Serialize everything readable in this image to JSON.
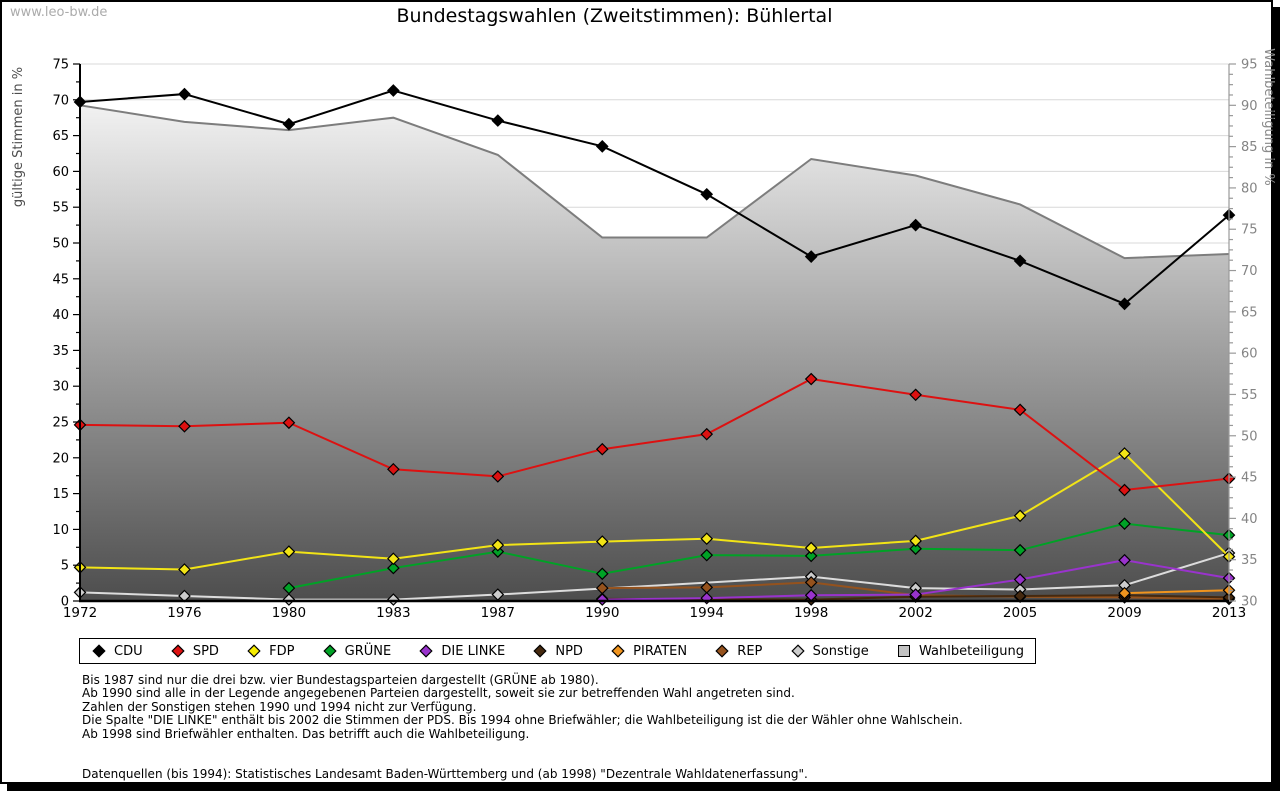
{
  "watermark": "www.leo-bw.de",
  "title": "Bundestagswahlen (Zweitstimmen): Bühlertal",
  "chart_data": {
    "type": "line",
    "categories": [
      "1972",
      "1976",
      "1980",
      "1983",
      "1987",
      "1990",
      "1994",
      "1998",
      "2002",
      "2005",
      "2009",
      "2013"
    ],
    "left_axis": {
      "label": "gültige Stimmen in %",
      "min": 0,
      "max": 75,
      "major_step": 5,
      "minor_step": 2.5
    },
    "right_axis": {
      "label": "Wahlbeteiligung in %",
      "min": 30,
      "max": 95,
      "major_step": 5,
      "minor_step": 1.25
    },
    "grid": "horizontal",
    "legend_position": "bottom",
    "turnout_series": {
      "name": "Wahlbeteiligung",
      "axis": "right",
      "style": "area",
      "line_color": "#7d7d7d",
      "fill_gradient_top": "#ffffff",
      "fill_gradient_bottom": "#4d4d4d",
      "values": [
        90,
        88,
        87,
        88.5,
        84,
        74,
        74,
        83.5,
        81.5,
        78,
        71.5,
        72
      ]
    },
    "series": [
      {
        "name": "CDU",
        "color": "#000000",
        "values": [
          69.7,
          70.8,
          66.6,
          71.3,
          67.1,
          63.5,
          56.8,
          48.1,
          52.5,
          47.5,
          41.5,
          53.9
        ]
      },
      {
        "name": "SPD",
        "color": "#dd1111",
        "values": [
          24.6,
          24.4,
          24.9,
          18.4,
          17.4,
          21.2,
          23.3,
          31.0,
          28.8,
          26.7,
          15.5,
          17.1
        ]
      },
      {
        "name": "FDP",
        "color": "#f2e416",
        "values": [
          4.7,
          4.4,
          6.9,
          5.9,
          7.8,
          8.3,
          8.7,
          7.4,
          8.4,
          11.9,
          20.6,
          6.2
        ]
      },
      {
        "name": "GRÜNE",
        "color": "#00a226",
        "values": [
          null,
          null,
          1.8,
          4.6,
          6.9,
          3.8,
          6.4,
          6.3,
          7.3,
          7.1,
          10.8,
          9.2
        ]
      },
      {
        "name": "DIE LINKE",
        "color": "#9933cc",
        "values": [
          null,
          null,
          null,
          null,
          null,
          0.2,
          0.4,
          0.8,
          0.9,
          3.0,
          5.7,
          3.2
        ]
      },
      {
        "name": "NPD",
        "color": "#45290f",
        "values": [
          null,
          null,
          null,
          null,
          null,
          0.3,
          null,
          0.2,
          0.6,
          0.7,
          0.8,
          0.5
        ]
      },
      {
        "name": "PIRATEN",
        "color": "#f0941e",
        "values": [
          null,
          null,
          null,
          null,
          null,
          null,
          null,
          null,
          null,
          null,
          1.1,
          1.5
        ]
      },
      {
        "name": "REP",
        "color": "#95521d",
        "values": [
          null,
          null,
          null,
          null,
          null,
          1.8,
          1.9,
          2.6,
          0.8,
          0.6,
          0.5,
          0.3
        ]
      },
      {
        "name": "Sonstige",
        "color": "#dcdcdc",
        "marker_fill": "#cccccc",
        "connect_gaps": true,
        "values": [
          1.2,
          0.7,
          0.2,
          0.2,
          0.9,
          null,
          null,
          3.4,
          1.8,
          1.6,
          2.2,
          6.7
        ]
      }
    ]
  },
  "legend": {
    "items": [
      {
        "label": "CDU",
        "swatch": "diamond",
        "color": "#000000"
      },
      {
        "label": "SPD",
        "swatch": "diamond",
        "color": "#dd1111"
      },
      {
        "label": "FDP",
        "swatch": "diamond",
        "color": "#f6ec00"
      },
      {
        "label": "GRÜNE",
        "swatch": "diamond",
        "color": "#00a226"
      },
      {
        "label": "DIE LINKE",
        "swatch": "diamond",
        "color": "#9933cc"
      },
      {
        "label": "NPD",
        "swatch": "diamond",
        "color": "#45290f"
      },
      {
        "label": "PIRATEN",
        "swatch": "diamond",
        "color": "#f0941e"
      },
      {
        "label": "REP",
        "swatch": "diamond",
        "color": "#95521d"
      },
      {
        "label": "Sonstige",
        "swatch": "diamond",
        "color": "#cccccc"
      },
      {
        "label": "Wahlbeteiligung",
        "swatch": "square",
        "color": "#c2c2c2"
      }
    ]
  },
  "footnotes": [
    "Bis 1987 sind nur die drei bzw. vier Bundestagsparteien dargestellt (GRÜNE ab 1980).",
    "Ab 1990 sind alle in der Legende angegebenen Parteien dargestellt, soweit sie zur betreffenden Wahl angetreten sind.",
    "Zahlen der Sonstigen stehen 1990 und 1994 nicht zur Verfügung.",
    "Die Spalte \"DIE LINKE\" enthält bis 2002 die Stimmen der PDS. Bis 1994 ohne Briefwähler; die Wahlbeteiligung ist die der Wähler ohne Wahlschein.",
    "Ab 1998 sind Briefwähler enthalten. Das betrifft auch die Wahlbeteiligung.",
    "",
    "",
    "Datenquellen (bis 1994): Statistisches Landesamt Baden-Württemberg und (ab 1998) \"Dezentrale Wahldatenerfassung\"."
  ]
}
